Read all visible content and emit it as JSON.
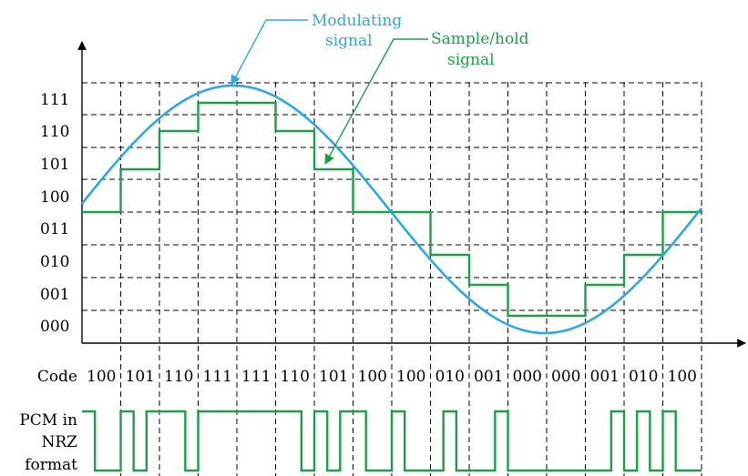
{
  "annotations": {
    "modulating_label_line1": "Modulating",
    "modulating_label_line2": "signal",
    "sample_hold_label_line1": "Sample/hold",
    "sample_hold_label_line2": "signal"
  },
  "y_axis": {
    "levels": [
      "000",
      "001",
      "010",
      "011",
      "100",
      "101",
      "110",
      "111"
    ]
  },
  "code_row": {
    "label": "Code",
    "codes": [
      "100",
      "101",
      "110",
      "111",
      "111",
      "110",
      "101",
      "100",
      "100",
      "010",
      "001",
      "000",
      "000",
      "001",
      "010",
      "100"
    ]
  },
  "pcm_row": {
    "label_line1": "PCM in",
    "label_line2": "NRZ",
    "label_line3": "format"
  },
  "colors": {
    "modulating_signal": "#2ea9dd",
    "sample_hold_signal": "#1e9e48",
    "modulating_label_text": "#2ea9dd",
    "sample_hold_label_text": "#1e9e48",
    "axis": "#000000",
    "dashed_grid": "#000000"
  }
}
